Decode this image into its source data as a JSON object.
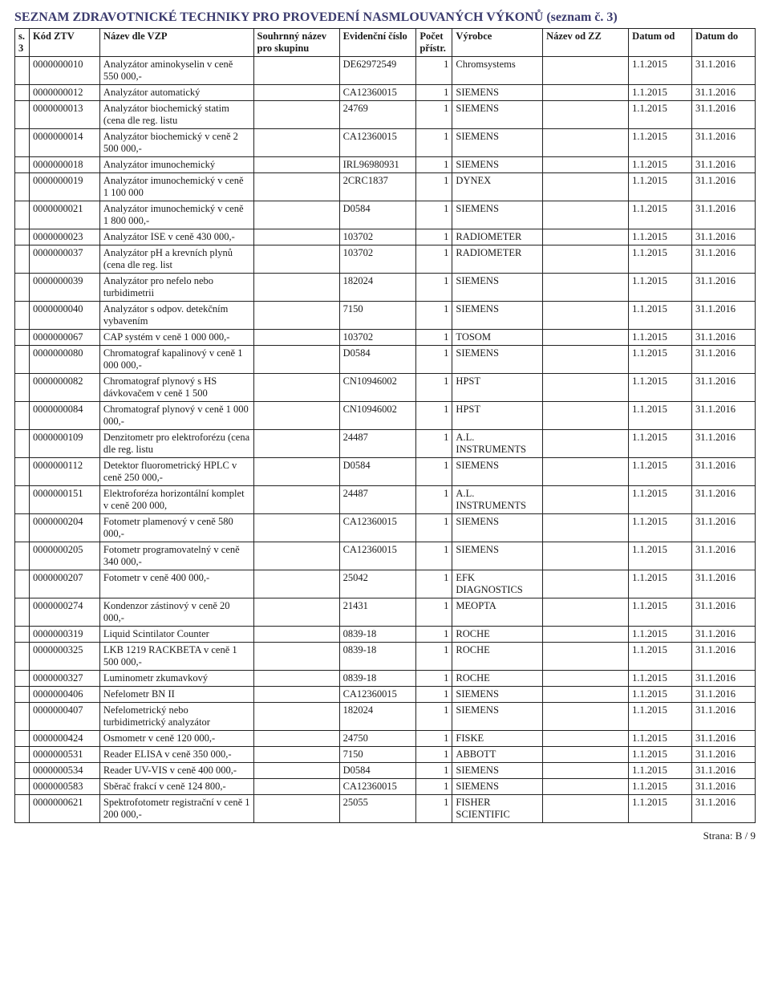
{
  "title": "SEZNAM ZDRAVOTNICKÉ TECHNIKY PRO PROVEDENÍ NASMLOUVANÝCH VÝKONŮ (seznam č. 3)",
  "columns": [
    "s. 3",
    "Kód ZTV",
    "Název dle VZP",
    "Souhrnný název pro skupinu",
    "Evidenční číslo",
    "Počet přístr.",
    "Výrobce",
    "Název od ZZ",
    "Datum od",
    "Datum do"
  ],
  "footer": "Strana: B / 9",
  "rows": [
    {
      "k": "0000000010",
      "n": "Analyzátor aminokyselin v ceně 550 000,-",
      "e": "DE62972549",
      "p": "1",
      "v": "Chromsystems",
      "d1": "1.1.2015",
      "d2": "31.1.2016"
    },
    {
      "k": "0000000012",
      "n": "Analyzátor automatický",
      "e": "CA12360015",
      "p": "1",
      "v": "SIEMENS",
      "d1": "1.1.2015",
      "d2": "31.1.2016"
    },
    {
      "k": "0000000013",
      "n": "Analyzátor biochemický statim (cena dle reg. listu",
      "e": "24769",
      "p": "1",
      "v": "SIEMENS",
      "d1": "1.1.2015",
      "d2": "31.1.2016"
    },
    {
      "k": "0000000014",
      "n": "Analyzátor biochemický v ceně 2 500 000,-",
      "e": "CA12360015",
      "p": "1",
      "v": "SIEMENS",
      "d1": "1.1.2015",
      "d2": "31.1.2016"
    },
    {
      "k": "0000000018",
      "n": "Analyzátor imunochemický",
      "e": "IRL96980931",
      "p": "1",
      "v": "SIEMENS",
      "d1": "1.1.2015",
      "d2": "31.1.2016"
    },
    {
      "k": "0000000019",
      "n": "Analyzátor imunochemický v ceně 1 100 000",
      "e": "2CRC1837",
      "p": "1",
      "v": "DYNEX",
      "d1": "1.1.2015",
      "d2": "31.1.2016"
    },
    {
      "k": "0000000021",
      "n": "Analyzátor imunochemický v ceně 1 800 000,-",
      "e": "D0584",
      "p": "1",
      "v": "SIEMENS",
      "d1": "1.1.2015",
      "d2": "31.1.2016"
    },
    {
      "k": "0000000023",
      "n": "Analyzátor ISE v ceně 430 000,-",
      "e": "103702",
      "p": "1",
      "v": "RADIOMETER",
      "d1": "1.1.2015",
      "d2": "31.1.2016"
    },
    {
      "k": "0000000037",
      "n": "Analyzátor pH a krevních plynů (cena dle reg. list",
      "e": "103702",
      "p": "1",
      "v": "RADIOMETER",
      "d1": "1.1.2015",
      "d2": "31.1.2016"
    },
    {
      "k": "0000000039",
      "n": "Analyzátor pro nefelo nebo turbidimetrii",
      "e": "182024",
      "p": "1",
      "v": "SIEMENS",
      "d1": "1.1.2015",
      "d2": "31.1.2016"
    },
    {
      "k": "0000000040",
      "n": "Analyzátor s odpov. detekčním vybavením",
      "e": "7150",
      "p": "1",
      "v": "SIEMENS",
      "d1": "1.1.2015",
      "d2": "31.1.2016"
    },
    {
      "k": "0000000067",
      "n": "CAP systém v ceně 1 000 000,-",
      "e": "103702",
      "p": "1",
      "v": "TOSOM",
      "d1": "1.1.2015",
      "d2": "31.1.2016"
    },
    {
      "k": "0000000080",
      "n": "Chromatograf kapalinový v ceně 1 000 000,-",
      "e": "D0584",
      "p": "1",
      "v": "SIEMENS",
      "d1": "1.1.2015",
      "d2": "31.1.2016"
    },
    {
      "k": "0000000082",
      "n": "Chromatograf plynový s HS dávkovačem v ceně 1 500",
      "e": "CN10946002",
      "p": "1",
      "v": "HPST",
      "d1": "1.1.2015",
      "d2": "31.1.2016"
    },
    {
      "k": "0000000084",
      "n": "Chromatograf plynový v ceně 1 000 000,-",
      "e": "CN10946002",
      "p": "1",
      "v": "HPST",
      "d1": "1.1.2015",
      "d2": "31.1.2016"
    },
    {
      "k": "0000000109",
      "n": "Denzitometr pro elektroforézu (cena dle reg. listu",
      "e": "24487",
      "p": "1",
      "v": "A.L. INSTRUMENTS",
      "d1": "1.1.2015",
      "d2": "31.1.2016"
    },
    {
      "k": "0000000112",
      "n": "Detektor fluorometrický HPLC v ceně 250 000,-",
      "e": "D0584",
      "p": "1",
      "v": "SIEMENS",
      "d1": "1.1.2015",
      "d2": "31.1.2016"
    },
    {
      "k": "0000000151",
      "n": "Elektroforéza horizontální komplet v ceně 200 000,",
      "e": "24487",
      "p": "1",
      "v": "A.L. INSTRUMENTS",
      "d1": "1.1.2015",
      "d2": "31.1.2016"
    },
    {
      "k": "0000000204",
      "n": "Fotometr plamenový v ceně 580 000,-",
      "e": "CA12360015",
      "p": "1",
      "v": "SIEMENS",
      "d1": "1.1.2015",
      "d2": "31.1.2016"
    },
    {
      "k": "0000000205",
      "n": "Fotometr programovatelný v ceně 340 000,-",
      "e": "CA12360015",
      "p": "1",
      "v": "SIEMENS",
      "d1": "1.1.2015",
      "d2": "31.1.2016"
    },
    {
      "k": "0000000207",
      "n": "Fotometr v ceně 400 000,-",
      "e": "25042",
      "p": "1",
      "v": "EFK DIAGNOSTICS",
      "d1": "1.1.2015",
      "d2": "31.1.2016"
    },
    {
      "k": "0000000274",
      "n": "Kondenzor zástinový v ceně 20 000,-",
      "e": "21431",
      "p": "1",
      "v": "MEOPTA",
      "d1": "1.1.2015",
      "d2": "31.1.2016"
    },
    {
      "k": "0000000319",
      "n": "Liquid Scintilator Counter",
      "e": "0839-18",
      "p": "1",
      "v": "ROCHE",
      "d1": "1.1.2015",
      "d2": "31.1.2016"
    },
    {
      "k": "0000000325",
      "n": "LKB 1219 RACKBETA v ceně 1 500 000,-",
      "e": "0839-18",
      "p": "1",
      "v": "ROCHE",
      "d1": "1.1.2015",
      "d2": "31.1.2016"
    },
    {
      "k": "0000000327",
      "n": "Luminometr zkumavkový",
      "e": "0839-18",
      "p": "1",
      "v": "ROCHE",
      "d1": "1.1.2015",
      "d2": "31.1.2016"
    },
    {
      "k": "0000000406",
      "n": "Nefelometr BN II",
      "e": "CA12360015",
      "p": "1",
      "v": "SIEMENS",
      "d1": "1.1.2015",
      "d2": "31.1.2016"
    },
    {
      "k": "0000000407",
      "n": "Nefelometrický nebo turbidimetrický analyzátor",
      "e": "182024",
      "p": "1",
      "v": "SIEMENS",
      "d1": "1.1.2015",
      "d2": "31.1.2016"
    },
    {
      "k": "0000000424",
      "n": "Osmometr v ceně 120 000,-",
      "e": "24750",
      "p": "1",
      "v": "FISKE",
      "d1": "1.1.2015",
      "d2": "31.1.2016"
    },
    {
      "k": "0000000531",
      "n": "Reader ELISA v ceně 350 000,-",
      "e": "7150",
      "p": "1",
      "v": "ABBOTT",
      "d1": "1.1.2015",
      "d2": "31.1.2016"
    },
    {
      "k": "0000000534",
      "n": "Reader UV-VIS v ceně 400 000,-",
      "e": "D0584",
      "p": "1",
      "v": "SIEMENS",
      "d1": "1.1.2015",
      "d2": "31.1.2016"
    },
    {
      "k": "0000000583",
      "n": "Sběrač frakcí v ceně 124 800,-",
      "e": "CA12360015",
      "p": "1",
      "v": "SIEMENS",
      "d1": "1.1.2015",
      "d2": "31.1.2016"
    },
    {
      "k": "0000000621",
      "n": "Spektrofotometr registrační v ceně 1 200 000,-",
      "e": "25055",
      "p": "1",
      "v": "FISHER SCIENTIFIC",
      "d1": "1.1.2015",
      "d2": "31.1.2016"
    }
  ]
}
